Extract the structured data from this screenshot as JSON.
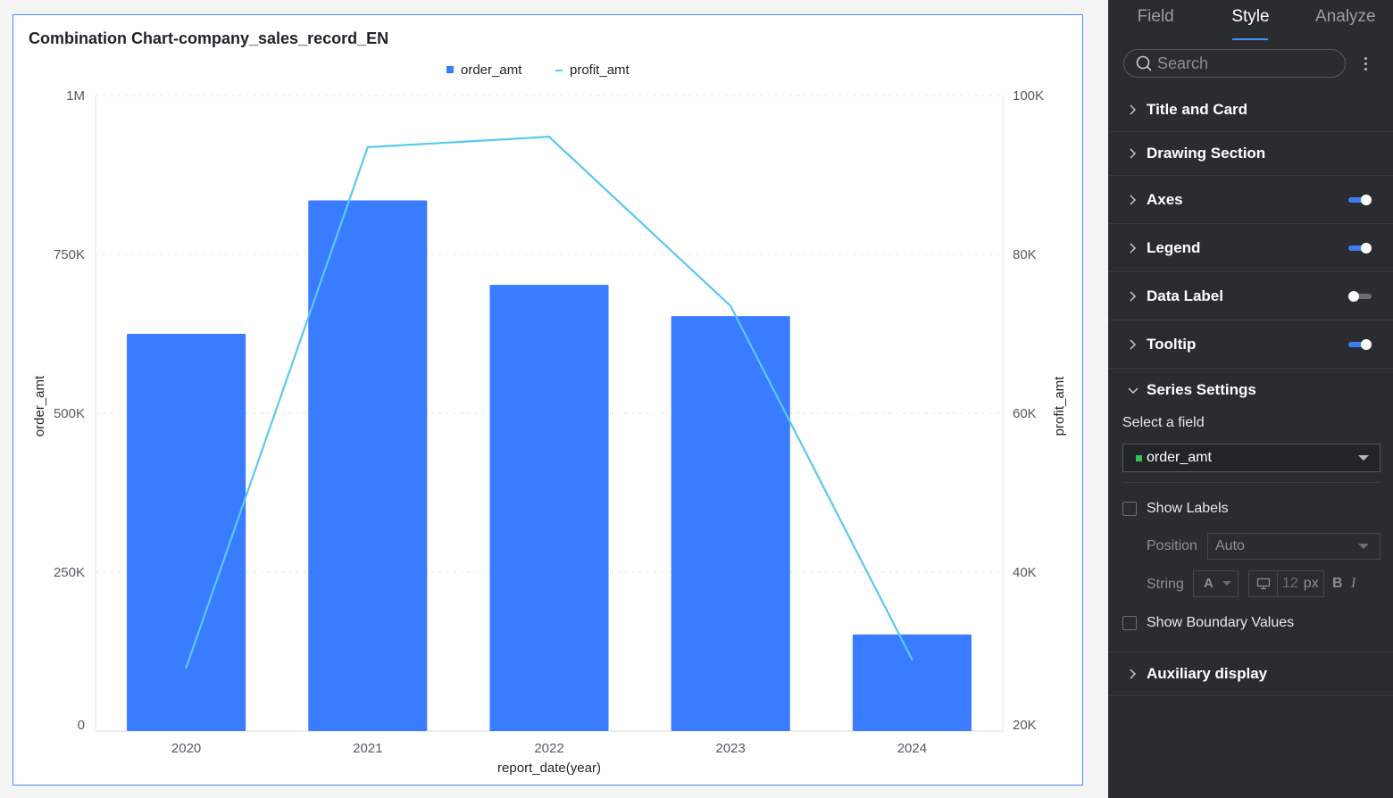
{
  "chart": {
    "title": "Combination Chart-company_sales_record_EN"
  },
  "chart_data": {
    "type": "bar",
    "title": "Combination Chart-company_sales_record_EN",
    "categories": [
      "2020",
      "2021",
      "2022",
      "2023",
      "2024"
    ],
    "xlabel": "report_date(year)",
    "ylabel": "order_amt",
    "y2label": "profit_amt",
    "ylim": [
      0,
      1000000
    ],
    "y2lim": [
      20000,
      100000
    ],
    "y_ticks": [
      "0",
      "250K",
      "500K",
      "750K",
      "1M"
    ],
    "y2_ticks": [
      "20K",
      "40K",
      "60K",
      "80K",
      "100K"
    ],
    "legend_position": "top-center",
    "grid": true,
    "series": [
      {
        "name": "order_amt",
        "type": "bar",
        "axis": "left",
        "color": "#3a7cff",
        "values": [
          625000,
          835000,
          702000,
          653000,
          152000
        ]
      },
      {
        "name": "profit_amt",
        "type": "line",
        "axis": "right",
        "color": "#5ac8f0",
        "values": [
          28000,
          93500,
          94800,
          73500,
          29000
        ]
      }
    ]
  },
  "panel": {
    "tabs": [
      {
        "label": "Field",
        "active": false
      },
      {
        "label": "Style",
        "active": true
      },
      {
        "label": "Analyze",
        "active": false
      }
    ],
    "search": {
      "placeholder": "Search",
      "value": ""
    },
    "sections": [
      {
        "label": "Title and Card",
        "toggle": null,
        "expanded": false
      },
      {
        "label": "Drawing Section",
        "toggle": null,
        "expanded": false
      },
      {
        "label": "Axes",
        "toggle": "on",
        "expanded": false
      },
      {
        "label": "Legend",
        "toggle": "on",
        "expanded": false
      },
      {
        "label": "Data Label",
        "toggle": "off",
        "expanded": false
      },
      {
        "label": "Tooltip",
        "toggle": "on",
        "expanded": false
      },
      {
        "label": "Series Settings",
        "toggle": null,
        "expanded": true
      },
      {
        "label": "Auxiliary display",
        "toggle": null,
        "expanded": false
      }
    ],
    "series_settings": {
      "select_field_label": "Select a field",
      "selected_field": "order_amt",
      "selected_field_color": "#2fc25b",
      "show_labels": {
        "label": "Show Labels",
        "checked": false
      },
      "position": {
        "label": "Position",
        "value": "Auto"
      },
      "string": {
        "label": "String",
        "font_color": "A",
        "font_size": "12",
        "unit": "px",
        "bold": "B",
        "italic": "I"
      },
      "show_boundary_values": {
        "label": "Show Boundary Values",
        "checked": false
      }
    }
  },
  "colors": {
    "accent": "#4a8cf7",
    "bar": "#3a7cff",
    "line": "#5ac8f0",
    "panel_bg": "#2b2c30"
  }
}
